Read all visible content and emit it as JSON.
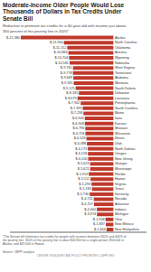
{
  "chart_data": {
    "type": "bar",
    "orientation": "horizontal",
    "title": "Moderate-Income Older People Would Lose\nThousands of Dollars in Tax Credits Under\nSenate Bill",
    "subtitle": "Reduction in premium tax credits for a 60-year-old with income just above\n350 percent of the poverty line in 2020*",
    "annotations": [
      "*The Senate bill eliminates tax credits for people with incomes between 350% and 400% of\nthe poverty line. 350% of the poverty line is about $42,800 for a single person; $53,000 in\nAlaska; and $49,000 in Hawaii.\n\nSource: CBPP analysis",
      "CENTER ON BUDGET AND POLICY PRIORITIES | CBPP.ORG"
    ],
    "categories": [
      "Alaska",
      "North Carolina",
      "Oklahoma",
      "Arizona",
      "Wyoming",
      "Nebraska",
      "West Virginia",
      "Tennessee",
      "Alabama",
      "Montana",
      "South Dakota",
      "Delaware",
      "Louisiana",
      "Pennsylvania",
      "South Carolina",
      "Maine",
      "Iowa",
      "Kansas",
      "Missouri",
      "Wisconsin",
      "Illinois",
      "Utah",
      "North Dakota",
      "Oregon",
      "New Jersey",
      "Georgia",
      "Mississippi",
      "Florida",
      "Hawaii",
      "Virginia",
      "Texas",
      "Kentucky",
      "Nevada",
      "Arkansas",
      "Indiana",
      "Michigan",
      "Ohio",
      "New Mexico",
      "New Hampshire"
    ],
    "values": [
      -22380,
      -11964,
      -11152,
      -10884,
      -10704,
      -10581,
      -9765,
      -9778,
      -9669,
      -9581,
      -9125,
      -8335,
      -8679,
      -7902,
      -7399,
      -7236,
      -6906,
      -6908,
      -6796,
      -6758,
      -6528,
      -6388,
      -6173,
      -6158,
      -6100,
      -5623,
      -5621,
      -5953,
      -5512,
      -5293,
      -5183,
      -5730,
      -4741,
      -4707,
      -4000,
      -3974,
      -1908,
      -1837,
      -1644
    ],
    "value_labels": [
      "$-22,380",
      "$-11,964",
      "$-11,152",
      "$-10,884",
      "$-10,704",
      "$-10,581",
      "$-9,765",
      "$-9,778",
      "$-9,669",
      "$-9,581",
      "$-9,125",
      "$-8,335",
      "$-8,679",
      "$-7,902",
      "$-7,399",
      "$-7,236",
      "$-6,906",
      "$-6,908",
      "$-6,796",
      "$-6,758",
      "$-6,528",
      "$-6,388",
      "$-6,173",
      "$-6,158",
      "$-6,100",
      "$-5,623",
      "$-5,621",
      "$-5,953",
      "$-5,512",
      "$-5,293",
      "$-5,183",
      "$-5,730",
      "$-4,741",
      "$-4,707",
      "$-4,000",
      "$-3,974",
      "$-1,908",
      "$-1,837",
      "$-1,644"
    ],
    "data_labels": true,
    "color": "#c0392b",
    "xlim": [
      -25000,
      8000
    ],
    "tick_labels": false,
    "grid": false
  }
}
